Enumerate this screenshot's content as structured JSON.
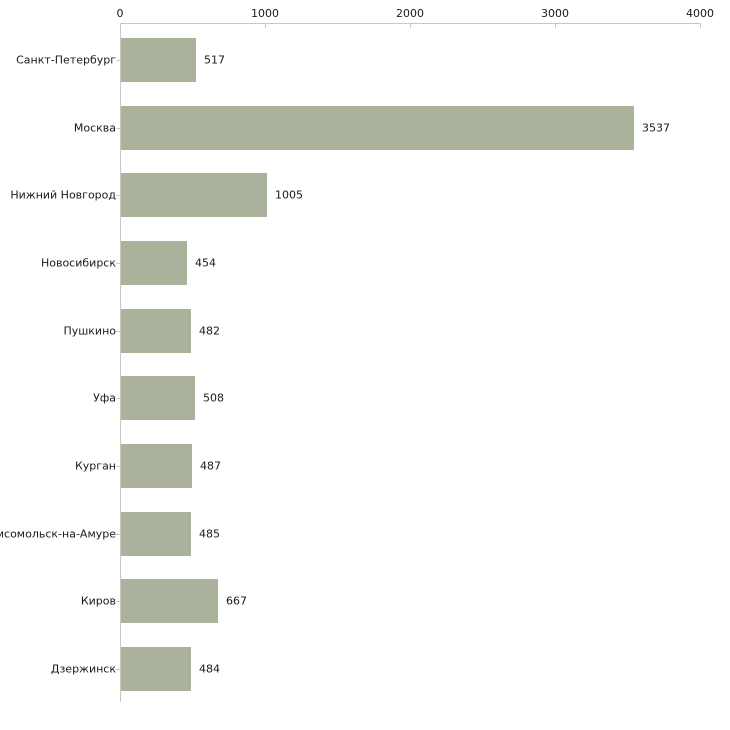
{
  "chart_data": {
    "type": "bar",
    "orientation": "horizontal",
    "title": "",
    "xlabel": "",
    "ylabel": "",
    "categories": [
      "Санкт-Петербург",
      "Москва",
      "Нижний Новгород",
      "Новосибирск",
      "Пушкино",
      "Уфа",
      "Курган",
      "мсомольск-на-Амуре",
      "Киров",
      "Дзержинск"
    ],
    "values": [
      517,
      3537,
      1005,
      454,
      482,
      508,
      487,
      485,
      667,
      484
    ],
    "xlim": [
      0,
      4000
    ],
    "x_ticks": [
      0,
      1000,
      2000,
      3000,
      4000
    ],
    "grid": false,
    "legend": false,
    "value_labels_shown": true,
    "colors": {
      "bar": "#abb29b",
      "axis": "#c7c7c4",
      "tick": "#cfcfae",
      "text": "#1a1a1a",
      "background": "#ffffff"
    }
  }
}
